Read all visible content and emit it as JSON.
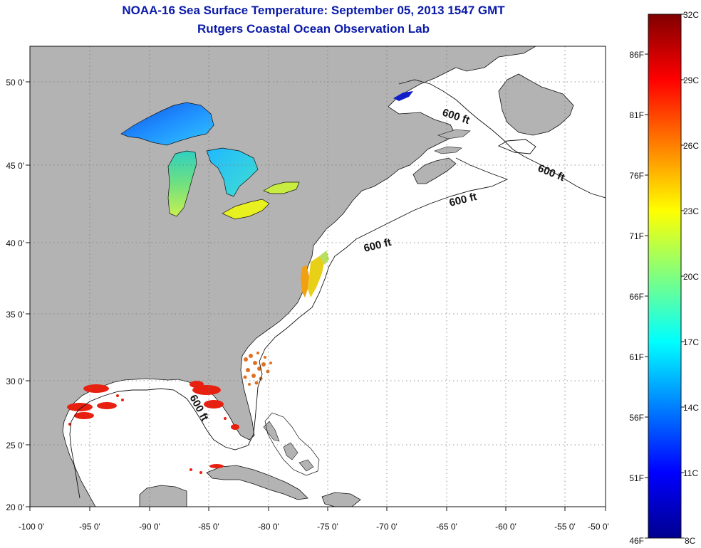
{
  "title": {
    "line1": "NOAA-16 Sea Surface Temperature:  September 05, 2013 1547 GMT",
    "line2": "Rutgers Coastal Ocean Observation Lab"
  },
  "axes": {
    "lon_labels": [
      "-100 0'",
      "-95 0'",
      "-90 0'",
      "-85 0'",
      "-80 0'",
      "-75 0'",
      "-70 0'",
      "-65 0'",
      "-60 0'",
      "-55 0'",
      "-50 0'"
    ],
    "lat_labels": [
      "50 0'",
      "45 0'",
      "40 0'",
      "35 0'",
      "30 0'",
      "25 0'",
      "20 0'"
    ]
  },
  "contour_labels": [
    "600 ft",
    "600 ft",
    "600 ft",
    "600 ft",
    "600 ft"
  ],
  "colorbar": {
    "celsius": [
      "32C",
      "29C",
      "26C",
      "23C",
      "20C",
      "17C",
      "14C",
      "11C",
      "8C"
    ],
    "fahrenheit": [
      "86F",
      "81F",
      "76F",
      "71F",
      "66F",
      "61F",
      "56F",
      "51F",
      "46F"
    ]
  },
  "colors": {
    "title": "#0a1aa8",
    "land": "#b3b3b3",
    "ocean_nodata": "#ffffff",
    "scale": [
      "#00008f",
      "#0000ff",
      "#0080ff",
      "#00ffff",
      "#80ff80",
      "#ffff00",
      "#ff8000",
      "#ff0000",
      "#800000"
    ]
  }
}
